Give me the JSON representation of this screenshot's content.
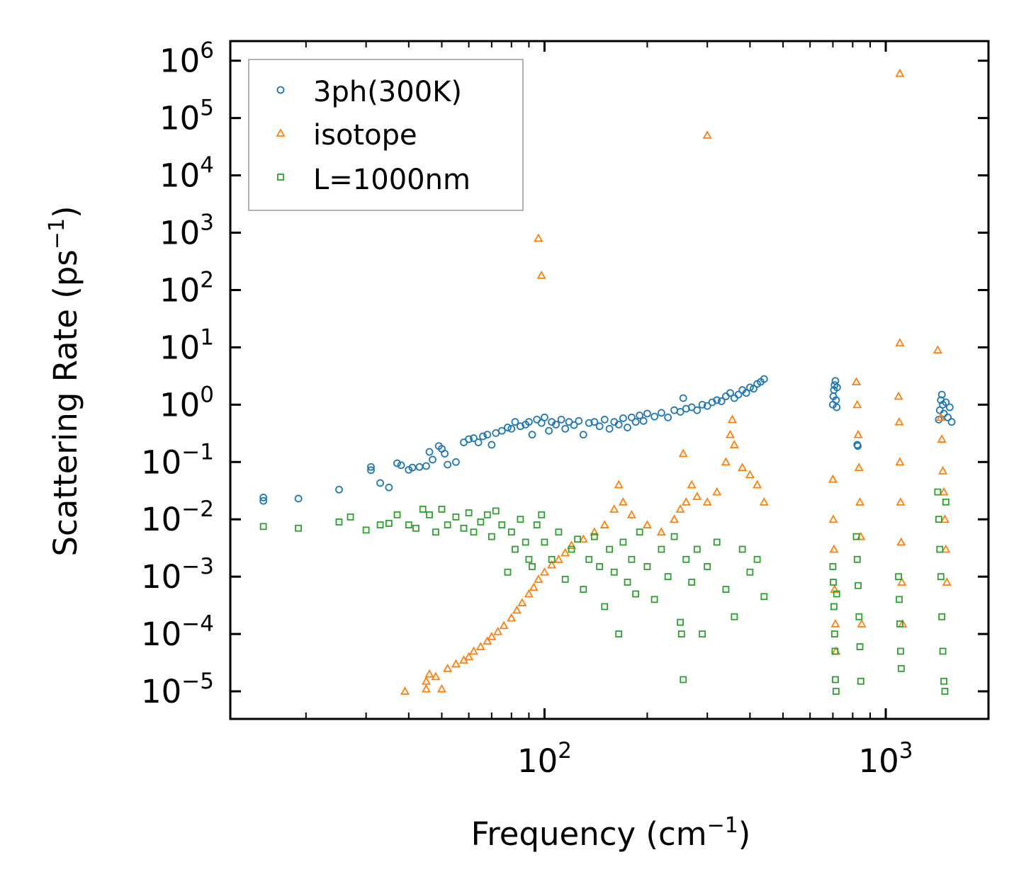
{
  "chart_data": {
    "type": "scatter",
    "title": "",
    "xlabel": "Frequency (cm",
    "xlabel_sup": "−1",
    "xlabel_tail": ")",
    "ylabel": "Scattering Rate (ps",
    "ylabel_sup": "−1",
    "ylabel_tail": ")",
    "xscale": "log",
    "yscale": "log",
    "xlim": [
      12,
      2000
    ],
    "ylim": [
      3.3e-06,
      2200000.0
    ],
    "x_ticks": [
      {
        "value": 100,
        "base": "10",
        "exp": "2"
      },
      {
        "value": 1000,
        "base": "10",
        "exp": "3"
      }
    ],
    "y_ticks": [
      {
        "value": 1e-05,
        "base": "10",
        "exp": "−5"
      },
      {
        "value": 0.0001,
        "base": "10",
        "exp": "−4"
      },
      {
        "value": 0.001,
        "base": "10",
        "exp": "−3"
      },
      {
        "value": 0.01,
        "base": "10",
        "exp": "−2"
      },
      {
        "value": 0.1,
        "base": "10",
        "exp": "−1"
      },
      {
        "value": 1,
        "base": "10",
        "exp": "0"
      },
      {
        "value": 10,
        "base": "10",
        "exp": "1"
      },
      {
        "value": 100,
        "base": "10",
        "exp": "2"
      },
      {
        "value": 1000,
        "base": "10",
        "exp": "3"
      },
      {
        "value": 10000,
        "base": "10",
        "exp": "4"
      },
      {
        "value": 100000,
        "base": "10",
        "exp": "5"
      },
      {
        "value": 1000000,
        "base": "10",
        "exp": "6"
      }
    ],
    "legend_position": "top-left",
    "series": [
      {
        "name": "3ph(300K)",
        "marker": "circle",
        "color": "#1f77b4",
        "points": [
          [
            15,
            0.024
          ],
          [
            15,
            0.021
          ],
          [
            19,
            0.023
          ],
          [
            25,
            0.033
          ],
          [
            31,
            0.072
          ],
          [
            31,
            0.082
          ],
          [
            33,
            0.043
          ],
          [
            35,
            0.036
          ],
          [
            37,
            0.095
          ],
          [
            38,
            0.088
          ],
          [
            40,
            0.073
          ],
          [
            41,
            0.08
          ],
          [
            43,
            0.082
          ],
          [
            45,
            0.085
          ],
          [
            46,
            0.15
          ],
          [
            47,
            0.11
          ],
          [
            49,
            0.19
          ],
          [
            50,
            0.17
          ],
          [
            51,
            0.14
          ],
          [
            52,
            0.09
          ],
          [
            55,
            0.1
          ],
          [
            58,
            0.22
          ],
          [
            60,
            0.25
          ],
          [
            62,
            0.26
          ],
          [
            64,
            0.22
          ],
          [
            66,
            0.28
          ],
          [
            68,
            0.3
          ],
          [
            70,
            0.2
          ],
          [
            72,
            0.32
          ],
          [
            75,
            0.35
          ],
          [
            78,
            0.4
          ],
          [
            80,
            0.38
          ],
          [
            82,
            0.5
          ],
          [
            85,
            0.42
          ],
          [
            88,
            0.45
          ],
          [
            90,
            0.5
          ],
          [
            92,
            0.3
          ],
          [
            95,
            0.55
          ],
          [
            98,
            0.48
          ],
          [
            100,
            0.6
          ],
          [
            103,
            0.35
          ],
          [
            105,
            0.5
          ],
          [
            108,
            0.45
          ],
          [
            112,
            0.55
          ],
          [
            115,
            0.38
          ],
          [
            118,
            0.5
          ],
          [
            122,
            0.44
          ],
          [
            126,
            0.52
          ],
          [
            130,
            0.3
          ],
          [
            135,
            0.48
          ],
          [
            140,
            0.5
          ],
          [
            145,
            0.42
          ],
          [
            150,
            0.55
          ],
          [
            155,
            0.38
          ],
          [
            160,
            0.5
          ],
          [
            165,
            0.45
          ],
          [
            170,
            0.58
          ],
          [
            175,
            0.4
          ],
          [
            180,
            0.6
          ],
          [
            185,
            0.5
          ],
          [
            190,
            0.65
          ],
          [
            195,
            0.52
          ],
          [
            200,
            0.7
          ],
          [
            210,
            0.62
          ],
          [
            220,
            0.72
          ],
          [
            230,
            0.6
          ],
          [
            240,
            0.8
          ],
          [
            250,
            0.75
          ],
          [
            255,
            1.3
          ],
          [
            260,
            0.85
          ],
          [
            270,
            0.9
          ],
          [
            280,
            0.8
          ],
          [
            290,
            1.0
          ],
          [
            300,
            0.95
          ],
          [
            310,
            1.1
          ],
          [
            320,
            1.2
          ],
          [
            330,
            1.15
          ],
          [
            340,
            1.4
          ],
          [
            350,
            1.6
          ],
          [
            360,
            1.3
          ],
          [
            370,
            1.5
          ],
          [
            380,
            1.8
          ],
          [
            390,
            1.6
          ],
          [
            400,
            2.0
          ],
          [
            410,
            1.9
          ],
          [
            420,
            2.3
          ],
          [
            430,
            2.5
          ],
          [
            440,
            2.8
          ],
          [
            700,
            1.0
          ],
          [
            702,
            1.4
          ],
          [
            705,
            1.8
          ],
          [
            708,
            2.2
          ],
          [
            712,
            2.6
          ],
          [
            715,
            1.2
          ],
          [
            718,
            0.9
          ],
          [
            720,
            2.0
          ],
          [
            825,
            0.2
          ],
          [
            828,
            0.19
          ],
          [
            1430,
            0.55
          ],
          [
            1440,
            0.8
          ],
          [
            1450,
            1.2
          ],
          [
            1460,
            1.5
          ],
          [
            1470,
            1.0
          ],
          [
            1480,
            0.7
          ],
          [
            1500,
            1.1
          ],
          [
            1520,
            0.6
          ],
          [
            1540,
            0.9
          ],
          [
            1560,
            0.5
          ]
        ]
      },
      {
        "name": "isotope",
        "marker": "triangle",
        "color": "#ff7f0e",
        "points": [
          [
            39,
            1e-05
          ],
          [
            45,
            1.1e-05
          ],
          [
            45,
            1.5e-05
          ],
          [
            46,
            2e-05
          ],
          [
            48,
            1.8e-05
          ],
          [
            50,
            1.1e-05
          ],
          [
            52,
            2.5e-05
          ],
          [
            55,
            3e-05
          ],
          [
            58,
            3.5e-05
          ],
          [
            60,
            4e-05
          ],
          [
            62,
            5e-05
          ],
          [
            65,
            6e-05
          ],
          [
            68,
            7.5e-05
          ],
          [
            70,
            9e-05
          ],
          [
            73,
            0.00011
          ],
          [
            76,
            0.00014
          ],
          [
            80,
            0.00019
          ],
          [
            83,
            0.00026
          ],
          [
            86,
            0.00035
          ],
          [
            90,
            0.0005
          ],
          [
            93,
            0.00065
          ],
          [
            96,
            0.0009
          ],
          [
            100,
            0.0012
          ],
          [
            105,
            0.0016
          ],
          [
            110,
            0.002
          ],
          [
            115,
            0.0026
          ],
          [
            120,
            0.0035
          ],
          [
            130,
            0.0045
          ],
          [
            140,
            0.006
          ],
          [
            150,
            0.008
          ],
          [
            160,
            0.015
          ],
          [
            165,
            0.04
          ],
          [
            170,
            0.02
          ],
          [
            180,
            0.012
          ],
          [
            200,
            0.008
          ],
          [
            220,
            0.006
          ],
          [
            240,
            0.01
          ],
          [
            250,
            0.015
          ],
          [
            255,
            0.14
          ],
          [
            260,
            0.02
          ],
          [
            270,
            0.04
          ],
          [
            280,
            0.025
          ],
          [
            300,
            0.02
          ],
          [
            320,
            0.03
          ],
          [
            340,
            0.1
          ],
          [
            350,
            0.3
          ],
          [
            355,
            0.55
          ],
          [
            360,
            0.2
          ],
          [
            380,
            0.08
          ],
          [
            400,
            0.06
          ],
          [
            420,
            0.04
          ],
          [
            440,
            0.02
          ],
          [
            96,
            800
          ],
          [
            98,
            180
          ],
          [
            300,
            50000
          ],
          [
            1100,
            600000
          ],
          [
            1100,
            12
          ],
          [
            1420,
            9
          ],
          [
            700,
            0.05
          ],
          [
            702,
            0.01
          ],
          [
            705,
            0.003
          ],
          [
            708,
            0.0006
          ],
          [
            712,
            0.00015
          ],
          [
            715,
            5e-05
          ],
          [
            820,
            2.5
          ],
          [
            825,
            1.0
          ],
          [
            830,
            0.3
          ],
          [
            835,
            0.08
          ],
          [
            840,
            0.02
          ],
          [
            845,
            0.005
          ],
          [
            850,
            0.00015
          ],
          [
            1090,
            1.4
          ],
          [
            1095,
            0.5
          ],
          [
            1100,
            0.1
          ],
          [
            1105,
            0.02
          ],
          [
            1110,
            0.004
          ],
          [
            1115,
            0.0008
          ],
          [
            1120,
            0.00015
          ],
          [
            1450,
            0.6
          ],
          [
            1460,
            0.25
          ],
          [
            1470,
            0.07
          ],
          [
            1480,
            0.03
          ],
          [
            1490,
            0.01
          ],
          [
            1500,
            0.003
          ],
          [
            1510,
            0.0008
          ]
        ]
      },
      {
        "name": "L=1000nm",
        "marker": "square",
        "color": "#2ca02c",
        "points": [
          [
            15,
            0.0075
          ],
          [
            19,
            0.007
          ],
          [
            25,
            0.009
          ],
          [
            27,
            0.011
          ],
          [
            30,
            0.0065
          ],
          [
            33,
            0.008
          ],
          [
            35,
            0.0085
          ],
          [
            37,
            0.012
          ],
          [
            40,
            0.008
          ],
          [
            42,
            0.007
          ],
          [
            44,
            0.015
          ],
          [
            46,
            0.012
          ],
          [
            48,
            0.006
          ],
          [
            50,
            0.015
          ],
          [
            52,
            0.008
          ],
          [
            55,
            0.011
          ],
          [
            58,
            0.007
          ],
          [
            60,
            0.013
          ],
          [
            62,
            0.006
          ],
          [
            65,
            0.009
          ],
          [
            68,
            0.012
          ],
          [
            70,
            0.005
          ],
          [
            72,
            0.014
          ],
          [
            75,
            0.008
          ],
          [
            78,
            0.0012
          ],
          [
            80,
            0.006
          ],
          [
            82,
            0.003
          ],
          [
            85,
            0.01
          ],
          [
            88,
            0.004
          ],
          [
            90,
            0.002
          ],
          [
            92,
            0.0015
          ],
          [
            95,
            0.008
          ],
          [
            98,
            0.012
          ],
          [
            100,
            0.004
          ],
          [
            105,
            0.002
          ],
          [
            110,
            0.006
          ],
          [
            115,
            0.0009
          ],
          [
            120,
            0.003
          ],
          [
            125,
            0.0045
          ],
          [
            130,
            0.0006
          ],
          [
            135,
            0.002
          ],
          [
            140,
            0.005
          ],
          [
            145,
            0.0015
          ],
          [
            150,
            0.0003
          ],
          [
            155,
            0.003
          ],
          [
            160,
            0.0012
          ],
          [
            165,
            0.0001
          ],
          [
            170,
            0.004
          ],
          [
            175,
            0.0008
          ],
          [
            180,
            0.002
          ],
          [
            185,
            0.0005
          ],
          [
            190,
            0.006
          ],
          [
            200,
            0.0015
          ],
          [
            210,
            0.0004
          ],
          [
            220,
            0.003
          ],
          [
            230,
            0.001
          ],
          [
            240,
            0.005
          ],
          [
            250,
            0.00016
          ],
          [
            252,
            0.0001
          ],
          [
            255,
            1.6e-05
          ],
          [
            260,
            0.002
          ],
          [
            270,
            0.0008
          ],
          [
            280,
            0.003
          ],
          [
            290,
            0.0001
          ],
          [
            300,
            0.0015
          ],
          [
            320,
            0.004
          ],
          [
            340,
            0.0006
          ],
          [
            360,
            0.0002
          ],
          [
            380,
            0.003
          ],
          [
            400,
            0.0012
          ],
          [
            420,
            0.002
          ],
          [
            440,
            0.00045
          ],
          [
            700,
            0.0015
          ],
          [
            702,
            0.0008
          ],
          [
            705,
            0.0003
          ],
          [
            708,
            0.0001
          ],
          [
            710,
            5e-05
          ],
          [
            712,
            1.6e-05
          ],
          [
            715,
            1e-05
          ],
          [
            718,
            0.0005
          ],
          [
            820,
            0.005
          ],
          [
            825,
            0.002
          ],
          [
            830,
            0.0007
          ],
          [
            835,
            0.0002
          ],
          [
            840,
            6e-05
          ],
          [
            845,
            1.5e-05
          ],
          [
            1090,
            0.001
          ],
          [
            1095,
            0.0004
          ],
          [
            1100,
            0.00015
          ],
          [
            1105,
            5e-05
          ],
          [
            1110,
            2.5e-05
          ],
          [
            1420,
            0.03
          ],
          [
            1430,
            0.01
          ],
          [
            1440,
            0.003
          ],
          [
            1450,
            0.001
          ],
          [
            1460,
            0.0002
          ],
          [
            1470,
            5e-05
          ],
          [
            1480,
            1.5e-05
          ],
          [
            1490,
            1e-05
          ],
          [
            1500,
            0.02
          ]
        ]
      }
    ]
  }
}
